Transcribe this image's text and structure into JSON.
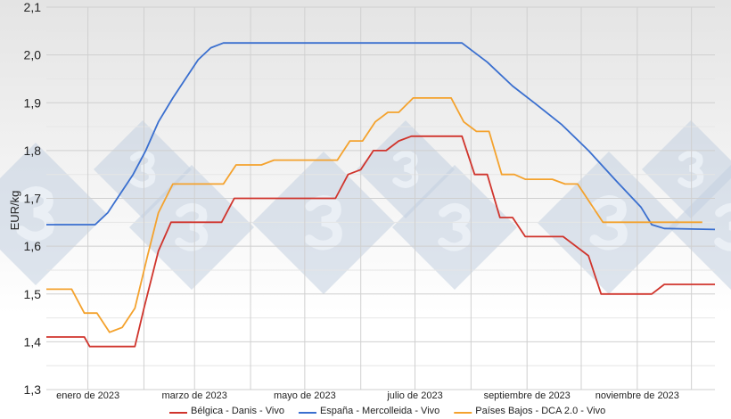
{
  "chart_data": {
    "type": "line",
    "title": "",
    "xlabel": "",
    "ylabel": "EUR/kg",
    "ylim": [
      1.3,
      2.1
    ],
    "yticks": [
      "1,3",
      "1,4",
      "1,5",
      "1,6",
      "1,7",
      "1,8",
      "1,9",
      "2,0",
      "2,1"
    ],
    "xlim": [
      "2022-12-09",
      "2023-12-14"
    ],
    "month_gridlines": [
      "2023-01-01",
      "2023-02-01",
      "2023-03-01",
      "2023-04-01",
      "2023-05-01",
      "2023-06-01",
      "2023-07-01",
      "2023-08-01",
      "2023-09-01",
      "2023-10-01",
      "2023-11-01",
      "2023-12-01"
    ],
    "xticks": [
      {
        "date": "2023-01-01",
        "label": "enero de 2023"
      },
      {
        "date": "2023-03-01",
        "label": "marzo de 2023"
      },
      {
        "date": "2023-05-01",
        "label": "mayo de 2023"
      },
      {
        "date": "2023-07-01",
        "label": "julio de 2023"
      },
      {
        "date": "2023-09-01",
        "label": "septiembre de 2023"
      },
      {
        "date": "2023-11-01",
        "label": "noviembre de 2023"
      }
    ],
    "grid": true,
    "legend_position": "bottom",
    "watermark": "3",
    "series": [
      {
        "name": "Bélgica - Danis - Vivo",
        "color": "#d0342c",
        "points": [
          [
            "2022-12-09",
            1.41
          ],
          [
            "2022-12-30",
            1.41
          ],
          [
            "2023-01-02",
            1.39
          ],
          [
            "2023-01-27",
            1.39
          ],
          [
            "2023-02-01",
            1.47
          ],
          [
            "2023-02-09",
            1.59
          ],
          [
            "2023-02-16",
            1.65
          ],
          [
            "2023-03-16",
            1.65
          ],
          [
            "2023-03-23",
            1.7
          ],
          [
            "2023-05-18",
            1.7
          ],
          [
            "2023-05-25",
            1.75
          ],
          [
            "2023-06-01",
            1.76
          ],
          [
            "2023-06-08",
            1.8
          ],
          [
            "2023-06-15",
            1.8
          ],
          [
            "2023-06-22",
            1.82
          ],
          [
            "2023-06-29",
            1.83
          ],
          [
            "2023-07-27",
            1.83
          ],
          [
            "2023-08-03",
            1.75
          ],
          [
            "2023-08-10",
            1.75
          ],
          [
            "2023-08-17",
            1.66
          ],
          [
            "2023-08-24",
            1.66
          ],
          [
            "2023-08-31",
            1.62
          ],
          [
            "2023-09-21",
            1.62
          ],
          [
            "2023-10-05",
            1.58
          ],
          [
            "2023-10-12",
            1.5
          ],
          [
            "2023-11-09",
            1.5
          ],
          [
            "2023-11-16",
            1.52
          ],
          [
            "2023-12-14",
            1.52
          ]
        ]
      },
      {
        "name": "España - Mercolleida - Vivo",
        "color": "#3a6fcf",
        "points": [
          [
            "2022-12-09",
            1.645
          ],
          [
            "2023-01-05",
            1.645
          ],
          [
            "2023-01-12",
            1.67
          ],
          [
            "2023-01-19",
            1.71
          ],
          [
            "2023-01-26",
            1.75
          ],
          [
            "2023-02-02",
            1.8
          ],
          [
            "2023-02-09",
            1.86
          ],
          [
            "2023-02-17",
            1.91
          ],
          [
            "2023-02-24",
            1.95
          ],
          [
            "2023-03-03",
            1.99
          ],
          [
            "2023-03-10",
            2.015
          ],
          [
            "2023-03-17",
            2.025
          ],
          [
            "2023-07-27",
            2.025
          ],
          [
            "2023-08-10",
            1.985
          ],
          [
            "2023-08-24",
            1.935
          ],
          [
            "2023-09-05",
            1.9
          ],
          [
            "2023-09-20",
            1.855
          ],
          [
            "2023-10-05",
            1.8
          ],
          [
            "2023-10-20",
            1.738
          ],
          [
            "2023-11-03",
            1.682
          ],
          [
            "2023-11-09",
            1.645
          ],
          [
            "2023-11-16",
            1.637
          ],
          [
            "2023-12-14",
            1.635
          ]
        ]
      },
      {
        "name": "Países Bajos - DCA 2.0 - Vivo",
        "color": "#f4a22d",
        "points": [
          [
            "2022-12-09",
            1.51
          ],
          [
            "2022-12-23",
            1.51
          ],
          [
            "2022-12-30",
            1.46
          ],
          [
            "2023-01-06",
            1.46
          ],
          [
            "2023-01-13",
            1.42
          ],
          [
            "2023-01-20",
            1.43
          ],
          [
            "2023-01-27",
            1.47
          ],
          [
            "2023-02-03",
            1.58
          ],
          [
            "2023-02-09",
            1.67
          ],
          [
            "2023-02-17",
            1.73
          ],
          [
            "2023-03-17",
            1.73
          ],
          [
            "2023-03-24",
            1.77
          ],
          [
            "2023-04-07",
            1.77
          ],
          [
            "2023-04-14",
            1.78
          ],
          [
            "2023-05-19",
            1.78
          ],
          [
            "2023-05-26",
            1.82
          ],
          [
            "2023-06-02",
            1.82
          ],
          [
            "2023-06-09",
            1.86
          ],
          [
            "2023-06-16",
            1.88
          ],
          [
            "2023-06-22",
            1.88
          ],
          [
            "2023-06-30",
            1.91
          ],
          [
            "2023-07-21",
            1.91
          ],
          [
            "2023-07-28",
            1.86
          ],
          [
            "2023-08-04",
            1.84
          ],
          [
            "2023-08-11",
            1.84
          ],
          [
            "2023-08-18",
            1.75
          ],
          [
            "2023-08-25",
            1.75
          ],
          [
            "2023-08-31",
            1.74
          ],
          [
            "2023-09-15",
            1.74
          ],
          [
            "2023-09-22",
            1.73
          ],
          [
            "2023-09-29",
            1.73
          ],
          [
            "2023-10-13",
            1.65
          ],
          [
            "2023-12-07",
            1.65
          ]
        ]
      }
    ]
  }
}
